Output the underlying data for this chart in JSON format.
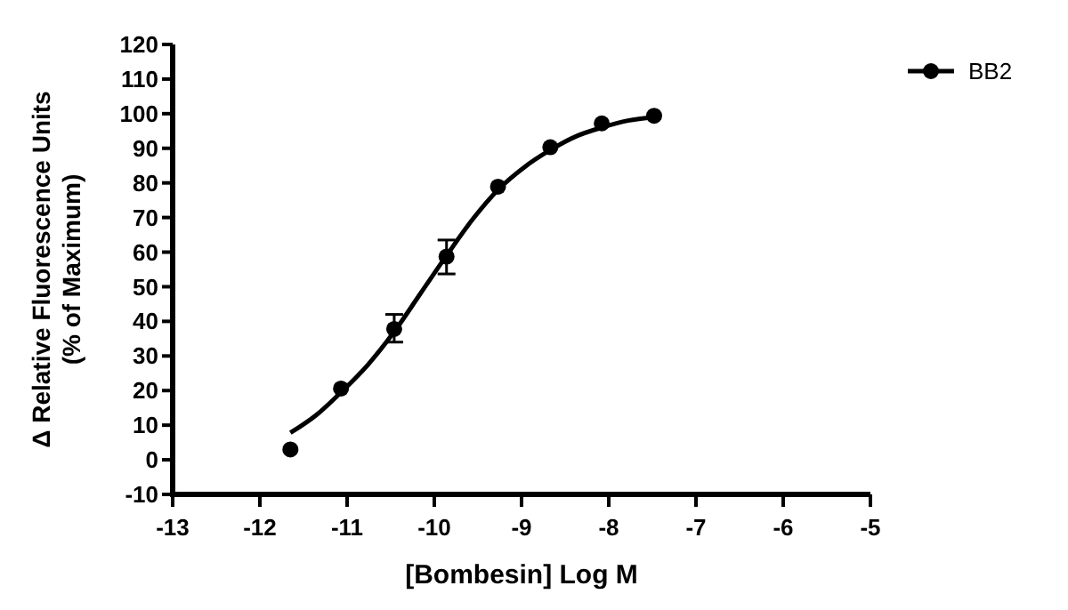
{
  "chart_data": {
    "type": "scatter",
    "xlabel": "[Bombesin] Log M",
    "ylabel": "Δ Relative Fluorescence Units\n(% of Maximum)",
    "xlim": [
      -13,
      -5
    ],
    "xticks": [
      -13,
      -12,
      -11,
      -10,
      -9,
      -8,
      -7,
      -6,
      -5
    ],
    "ylim": [
      -10,
      120
    ],
    "yticks": [
      -10,
      0,
      10,
      20,
      30,
      40,
      50,
      60,
      70,
      80,
      90,
      100,
      110,
      120
    ],
    "grid": false,
    "legend": "top right",
    "marker": "circle",
    "series": [
      {
        "name": "BB2",
        "color": "#000000",
        "x": [
          -11.65,
          -11.07,
          -10.46,
          -9.86,
          -9.27,
          -8.67,
          -8.08,
          -7.48
        ],
        "values": [
          3,
          20.6,
          37.8,
          58.7,
          78.9,
          90.3,
          97.2,
          99.4
        ],
        "errors": [
          null,
          null,
          [
            34,
            42
          ],
          [
            53.7,
            63.5
          ],
          null,
          null,
          null,
          null
        ]
      },
      {
        "type": "line",
        "color": "#000000",
        "marker": "none",
        "line_style": "solid",
        "x": [
          -11.65,
          -11.35,
          -11.07,
          -10.76,
          -10.46,
          -10.16,
          -9.86,
          -9.56,
          -9.27,
          -8.97,
          -8.67,
          -8.37,
          -8.08,
          -7.78,
          -7.48
        ],
        "values": [
          7.8,
          13,
          19.5,
          27.5,
          37,
          48,
          59,
          69.5,
          78,
          84.5,
          89.5,
          93.5,
          96,
          98,
          99
        ]
      }
    ]
  }
}
